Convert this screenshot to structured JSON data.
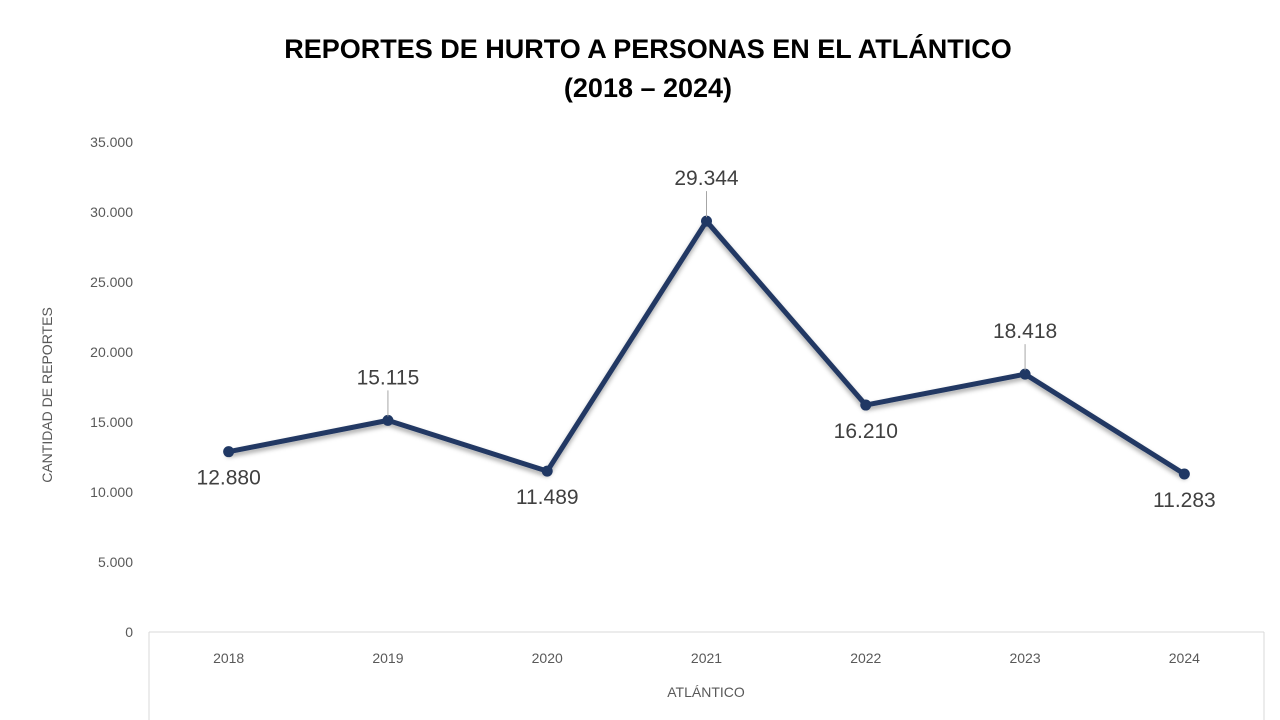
{
  "chart_data": {
    "type": "line",
    "title": "REPORTES DE HURTO A PERSONAS EN EL ATLÁNTICO",
    "subtitle": "(2018 – 2024)",
    "xlabel": "ATLÁNTICO",
    "ylabel": "CANTIDAD DE REPORTES",
    "categories": [
      "2018",
      "2019",
      "2020",
      "2021",
      "2022",
      "2023",
      "2024"
    ],
    "series": [
      {
        "values": [
          12880,
          15115,
          11489,
          29344,
          16210,
          18418,
          11283
        ],
        "labels": [
          "12.880",
          "15.115",
          "11.489",
          "29.344",
          "16.210",
          "18.418",
          "11.283"
        ],
        "color": "#203864"
      }
    ],
    "ylim": [
      0,
      35000
    ],
    "yticks": [
      0,
      5000,
      10000,
      15000,
      20000,
      25000,
      30000,
      35000
    ],
    "ytick_labels": [
      "0",
      "5.000",
      "10.000",
      "15.000",
      "20.000",
      "25.000",
      "30.000",
      "35.000"
    ],
    "grid": false,
    "legend": "none",
    "axis_color": "#d9d9d9"
  }
}
